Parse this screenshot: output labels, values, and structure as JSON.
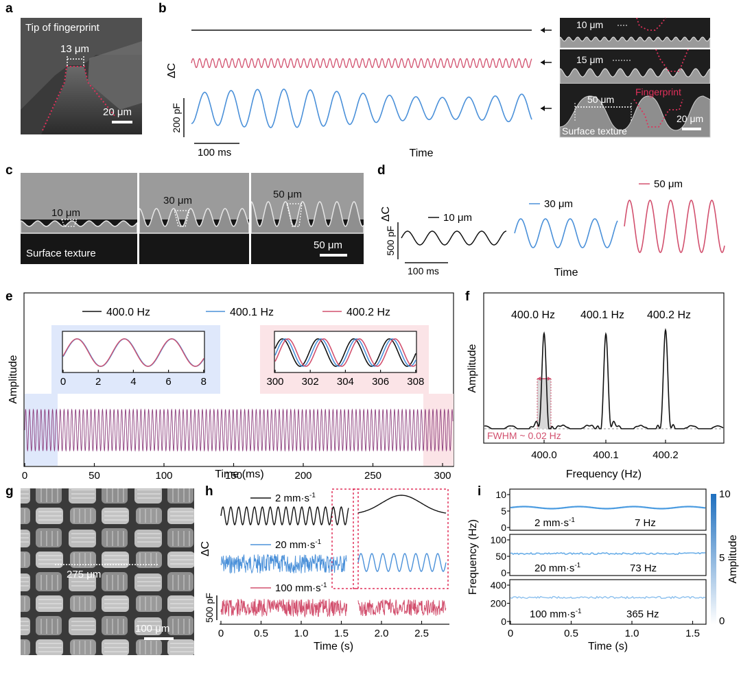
{
  "colors": {
    "black": "#111111",
    "blue": "#4a90d9",
    "red": "#d2506e",
    "pinkdash": "#e0305a",
    "bluebox": "#dfe8fb",
    "pinkbox": "#fbe4e7",
    "sem_dark": "#2b2b2b"
  },
  "panels": {
    "a": "a",
    "b": "b",
    "c": "c",
    "d": "d",
    "e": "e",
    "f": "f",
    "g": "g",
    "h": "h",
    "i": "i"
  },
  "a": {
    "title": "Tip of fingerprint",
    "width_label": "13 μm",
    "scale_label": "20 μm"
  },
  "b": {
    "delta_label": "ΔC",
    "scale_label": "200 pF",
    "time_scale": "100 ms",
    "xlabel": "Time",
    "insets": [
      {
        "label": "10 μm"
      },
      {
        "label": "15 μm"
      },
      {
        "label": "50 μm",
        "fingerprint": "Fingerprint",
        "texture": "Surface texture",
        "scale": "20 μm"
      }
    ]
  },
  "c": {
    "labels": [
      "10 μm",
      "30 μm",
      "50 μm"
    ],
    "texture": "Surface texture",
    "scale": "50 μm"
  },
  "d": {
    "delta_label": "ΔC",
    "scale_label": "500 pF",
    "time_scale": "100 ms",
    "xlabel": "Time",
    "legend": [
      "10 μm",
      "30 μm",
      "50 μm"
    ]
  },
  "e": {
    "ylabel": "Amplitude",
    "xlabel": "Time (ms)",
    "legend": [
      "400.0 Hz",
      "400.1 Hz",
      "400.2 Hz"
    ],
    "xticks": [
      "0",
      "50",
      "100",
      "150",
      "200",
      "250",
      "300"
    ],
    "inset1_ticks": [
      "0",
      "2",
      "4",
      "6",
      "8"
    ],
    "inset2_ticks": [
      "300",
      "302",
      "304",
      "306",
      "308"
    ]
  },
  "f": {
    "ylabel": "Amplitude",
    "xlabel": "Frequency (Hz)",
    "peaks": [
      "400.0 Hz",
      "400.1 Hz",
      "400.2 Hz"
    ],
    "xticks": [
      "400.0",
      "400.1",
      "400.2"
    ],
    "fwhm": "FWHM ~ 0.02 Hz"
  },
  "g": {
    "label": "275 μm",
    "scale": "100 μm"
  },
  "h": {
    "delta_label": "ΔC",
    "scale_label": "500 pF",
    "xlabel": "Time (s)",
    "xticks": [
      "0",
      "0.5",
      "1.0",
      "1.5",
      "2.0",
      "2.5"
    ],
    "series": [
      {
        "name": "2 mm·s"
      },
      {
        "name": "20 mm·s"
      },
      {
        "name": "100 mm·s"
      }
    ],
    "sup": "-1"
  },
  "i": {
    "ylabel": "Frequency (Hz)",
    "xlabel": "Time (s)",
    "cbar_label": "Amplitude",
    "cbar_ticks": [
      "10",
      "5",
      "0"
    ],
    "xticks": [
      "0",
      "0.5",
      "1.0",
      "1.5"
    ],
    "rows": [
      {
        "speed": "2 mm·s",
        "freq": "7 Hz",
        "yticks": [
          "10",
          "5",
          "0"
        ]
      },
      {
        "speed": "20 mm·s",
        "freq": "73 Hz",
        "yticks": [
          "100",
          "50",
          "0"
        ]
      },
      {
        "speed": "100 mm·s",
        "freq": "365 Hz",
        "yticks": [
          "400",
          "200",
          "0"
        ]
      }
    ]
  }
}
